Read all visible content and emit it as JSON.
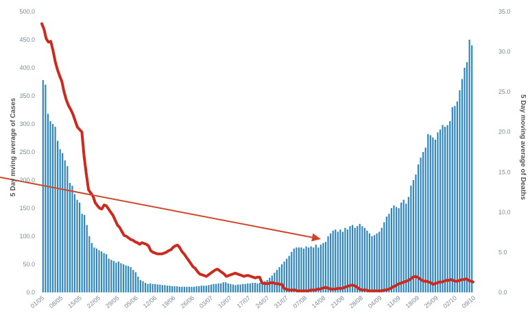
{
  "chart_data": {
    "type": "bar+line",
    "title": "",
    "xlabel": "",
    "ylabel_left": "5 Day mving average of Cases",
    "ylabel_right": "5 Day moving average of Deaths",
    "y_left_range": [
      0,
      500
    ],
    "y_right_range": [
      0,
      35
    ],
    "y_left_ticks": [
      "0.0",
      "50.0",
      "100.0",
      "150.0",
      "200.0",
      "250.0",
      "300.0",
      "350.0",
      "400.0",
      "450.0",
      "500.0"
    ],
    "y_right_ticks": [
      "0.0",
      "5.0",
      "10.0",
      "15.0",
      "20.0",
      "25.0",
      "30.0",
      "35.0"
    ],
    "x_tick_labels": [
      "01/05",
      "08/05",
      "15/05",
      "22/05",
      "29/05",
      "05/06",
      "12/06",
      "19/06",
      "26/06",
      "03/07",
      "10/07",
      "17/07",
      "24/07",
      "31/07",
      "07/08",
      "14/08",
      "21/08",
      "28/08",
      "04/09",
      "11/09",
      "18/09",
      "25/09",
      "02/10",
      "09/10"
    ],
    "grid": false,
    "legend": "none",
    "colors": {
      "bars": "#2e86c1",
      "line": "#cc2a1e",
      "arrow": "#d0452a",
      "ticks": "#7a8a9a"
    },
    "series": [
      {
        "kind": "bar",
        "axis": "left",
        "values": [
          378,
          370,
          318,
          305,
          300,
          295,
          270,
          255,
          248,
          235,
          225,
          195,
          190,
          175,
          165,
          160,
          140,
          138,
          120,
          100,
          88,
          80,
          78,
          75,
          73,
          70,
          68,
          60,
          58,
          56,
          53,
          55,
          52,
          50,
          48,
          47,
          45,
          40,
          36,
          28,
          22,
          20,
          17,
          15,
          16,
          15,
          15,
          14,
          14,
          13,
          13,
          12,
          12,
          11,
          11,
          11,
          10,
          10,
          10,
          10,
          10,
          10,
          10,
          11,
          11,
          12,
          12,
          12,
          13,
          14,
          15,
          15,
          16,
          16,
          18,
          18,
          16,
          15,
          14,
          13,
          14,
          14,
          15,
          15,
          16,
          16,
          17,
          17,
          16,
          17,
          18,
          20,
          22,
          26,
          30,
          35,
          40,
          45,
          50,
          55,
          60,
          65,
          72,
          78,
          80,
          80,
          80,
          78,
          82,
          80,
          82,
          80,
          85,
          80,
          85,
          88,
          90,
          100,
          105,
          110,
          112,
          108,
          112,
          108,
          115,
          112,
          118,
          120,
          115,
          118,
          122,
          118,
          115,
          110,
          105,
          100,
          102,
          105,
          108,
          115,
          125,
          135,
          140,
          150,
          155,
          152,
          150,
          160,
          165,
          158,
          170,
          190,
          200,
          210,
          228,
          240,
          250,
          258,
          282,
          280,
          276,
          272,
          285,
          290,
          298,
          295,
          298,
          305,
          330,
          332,
          340,
          360,
          380,
          400,
          410,
          450,
          440
        ]
      },
      {
        "kind": "line",
        "axis": "right",
        "values": [
          33.5,
          32.8,
          31.6,
          31.2,
          31.3,
          30.2,
          28.8,
          27.8,
          27.0,
          26.3,
          25.0,
          24.0,
          23.3,
          22.8,
          22.2,
          21.4,
          20.6,
          20.3,
          20.0,
          17.0,
          14.8,
          12.8,
          12.4,
          12.0,
          11.2,
          10.8,
          10.5,
          10.4,
          10.9,
          10.8,
          10.4,
          10.0,
          9.6,
          9.0,
          8.4,
          8.1,
          7.6,
          7.1,
          7.0,
          6.8,
          6.6,
          6.5,
          6.3,
          6.2,
          6.0,
          6.2,
          6.1,
          6.0,
          5.8,
          5.2,
          5.0,
          4.9,
          4.8,
          4.8,
          4.8,
          4.9,
          5.0,
          5.2,
          5.3,
          5.6,
          5.8,
          5.9,
          5.6,
          5.1,
          4.8,
          4.4,
          4.0,
          3.6,
          3.2,
          3.0,
          2.6,
          2.3,
          2.2,
          2.1,
          2.0,
          2.2,
          2.4,
          2.6,
          2.8,
          2.9,
          2.7,
          2.5,
          2.3,
          2.0,
          2.1,
          2.2,
          2.3,
          2.4,
          2.3,
          2.2,
          2.1,
          2.0,
          2.1,
          2.1,
          2.0,
          1.9,
          1.8,
          1.9,
          1.9,
          1.2,
          1.1,
          1.1,
          1.1,
          1.2,
          1.2,
          1.1,
          1.1,
          1.0,
          1.0,
          0.5,
          0.4,
          0.3,
          0.3,
          0.3,
          0.3,
          0.2,
          0.2,
          0.2,
          0.2,
          0.2,
          0.2,
          0.3,
          0.3,
          0.3,
          0.4,
          0.4,
          0.5,
          0.6,
          0.6,
          0.5,
          0.4,
          0.4,
          0.4,
          0.5,
          0.5,
          0.5,
          0.6,
          0.7,
          0.8,
          0.9,
          0.9,
          0.8,
          0.6,
          0.4,
          0.3,
          0.3,
          0.3,
          0.2,
          0.2,
          0.2,
          0.2,
          0.2,
          0.2,
          0.2,
          0.3,
          0.3,
          0.4,
          0.5,
          0.7,
          0.8,
          1.0,
          1.1,
          1.2,
          1.3,
          1.4,
          1.5,
          1.7,
          1.9,
          2.0,
          1.9,
          1.7,
          1.5,
          1.4,
          1.4,
          1.3,
          1.2,
          1.0,
          1.1,
          1.2,
          1.3,
          1.3,
          1.4,
          1.5,
          1.5,
          1.6,
          1.5,
          1.4,
          1.4,
          1.5,
          1.6,
          1.6,
          1.7,
          1.5,
          1.4,
          1.3
        ]
      }
    ],
    "annotations": [
      {
        "kind": "arrow",
        "from": [
          "30/04",
          205
        ],
        "to": [
          "07/08",
          95
        ]
      }
    ]
  }
}
